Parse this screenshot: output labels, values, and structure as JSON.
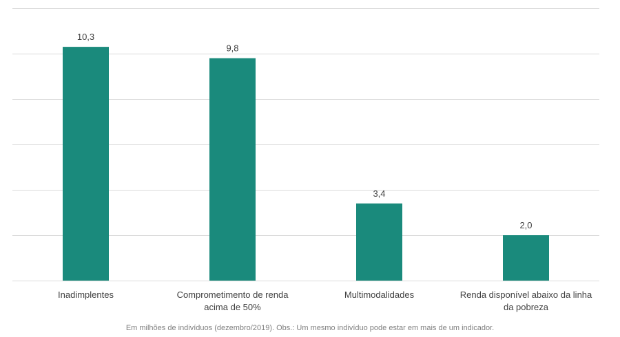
{
  "chart_data": {
    "type": "bar",
    "categories": [
      [
        "Inadimplentes"
      ],
      [
        "Comprometimento de renda",
        "acima de 50%"
      ],
      [
        "Multimodalidades"
      ],
      [
        "Renda disponível abaixo da linha",
        "da pobreza"
      ]
    ],
    "values": [
      10.3,
      9.8,
      3.4,
      2.0
    ],
    "value_labels": [
      "10,3",
      "9,8",
      "3,4",
      "2,0"
    ],
    "ylim": [
      0,
      12
    ],
    "grid": true,
    "legend": "none",
    "colors": {
      "bar": "#1a8a7c",
      "grid": "#d9d9d9"
    }
  },
  "footnote": "Em milhões de indivíduos (dezembro/2019). Obs.: Um mesmo indivíduo pode estar em mais de um indicador."
}
